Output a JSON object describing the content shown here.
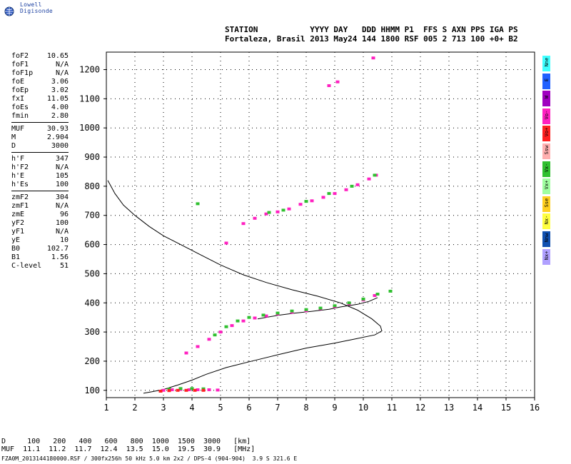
{
  "app": {
    "logo_text": "Lowell Digisonde"
  },
  "header": {
    "line1": "STATION           YYYY DAY   DDD HHMM P1  FFS S AXN PPS IGA PS",
    "line2": "Fortaleza, Brasil 2013 May24 144 1800 RSF 005 2 713 100 +0+ B2"
  },
  "params": {
    "group1": [
      {
        "k": "foF2",
        "v": "10.65"
      },
      {
        "k": "foF1",
        "v": "N/A"
      },
      {
        "k": "foF1p",
        "v": "N/A"
      },
      {
        "k": "foE",
        "v": "3.06"
      },
      {
        "k": "foEp",
        "v": "3.02"
      },
      {
        "k": "fxI",
        "v": "11.05"
      },
      {
        "k": "foEs",
        "v": "4.00"
      },
      {
        "k": "fmin",
        "v": "2.80"
      }
    ],
    "group2": [
      {
        "k": "MUF",
        "v": "30.93"
      },
      {
        "k": "M",
        "v": "2.904"
      },
      {
        "k": "D",
        "v": "3000"
      }
    ],
    "group3": [
      {
        "k": "h'F",
        "v": "347"
      },
      {
        "k": "h'F2",
        "v": "N/A"
      },
      {
        "k": "h'E",
        "v": "105"
      },
      {
        "k": "h'Es",
        "v": "100"
      }
    ],
    "group4": [
      {
        "k": "zmF2",
        "v": "304"
      },
      {
        "k": "zmF1",
        "v": "N/A"
      },
      {
        "k": "zmE",
        "v": "96"
      },
      {
        "k": "yF2",
        "v": "100"
      },
      {
        "k": "yF1",
        "v": "N/A"
      },
      {
        "k": "yE",
        "v": "10"
      },
      {
        "k": "B0",
        "v": "102.7"
      },
      {
        "k": "B1",
        "v": "1.56"
      },
      {
        "k": "C-level",
        "v": "51"
      }
    ]
  },
  "legend": [
    {
      "label": "Nne",
      "color": "#40ffff"
    },
    {
      "label": "E",
      "color": "#2060ff"
    },
    {
      "label": "W",
      "color": "#a000c0"
    },
    {
      "label": "Vo-",
      "color": "#ff20c0"
    },
    {
      "label": "Vo+",
      "color": "#ff2020"
    },
    {
      "label": "Ssw",
      "color": "#ffb0b0"
    },
    {
      "label": "Vx-",
      "color": "#30c030"
    },
    {
      "label": "Vx+",
      "color": "#a0ffa0"
    },
    {
      "label": "Sse",
      "color": "#ffd020"
    },
    {
      "label": "Nx-",
      "color": "#ffff40"
    },
    {
      "label": "Nnw",
      "color": "#1050b0"
    },
    {
      "label": "Nx+",
      "color": "#b0a0ff"
    }
  ],
  "bottom": {
    "d_row": "D     100   200   400   600   800  1000  1500  3000   [km]",
    "muf_row": "MUF  11.1  11.2  11.7  12.4  13.5  15.0  19.5  30.9   [MHz]",
    "footer": "FZA0M_2013144180000.RSF / 300fx256h 50 kHz 5.0 km 2x2 / DPS-4 (904-904)  3.9 S 321.6 E"
  },
  "chart_data": {
    "type": "scatter",
    "x_ticks": [
      "1",
      "2",
      "3",
      "4",
      "5",
      "6",
      "7",
      "8",
      "9",
      "10",
      "11",
      "12",
      "13",
      "14",
      "15",
      "16"
    ],
    "y_ticks": [
      "100",
      "200",
      "300",
      "400",
      "500",
      "600",
      "700",
      "800",
      "900",
      "1000",
      "1100",
      "1200"
    ],
    "xlim": [
      1,
      16
    ],
    "ylim": [
      75,
      1260
    ],
    "grid": true,
    "series": [
      {
        "color": "#ff20c0",
        "points": [
          [
            3.0,
            100
          ],
          [
            3.3,
            102
          ],
          [
            3.6,
            103
          ],
          [
            3.9,
            102
          ],
          [
            4.2,
            102
          ],
          [
            4.6,
            102
          ],
          [
            4.9,
            101
          ],
          [
            3.8,
            228
          ],
          [
            4.2,
            250
          ],
          [
            4.6,
            275
          ],
          [
            5.0,
            300
          ],
          [
            5.4,
            322
          ],
          [
            5.8,
            338
          ],
          [
            6.2,
            348
          ],
          [
            6.6,
            355
          ],
          [
            7.0,
            362
          ],
          [
            7.5,
            368
          ],
          [
            8.0,
            373
          ],
          [
            8.5,
            380
          ],
          [
            9.0,
            387
          ],
          [
            9.5,
            397
          ],
          [
            10.0,
            410
          ],
          [
            10.4,
            425
          ],
          [
            5.8,
            672
          ],
          [
            6.2,
            690
          ],
          [
            6.6,
            705
          ],
          [
            7.0,
            712
          ],
          [
            7.4,
            722
          ],
          [
            7.8,
            738
          ],
          [
            8.2,
            750
          ],
          [
            8.6,
            762
          ],
          [
            9.0,
            775
          ],
          [
            9.4,
            788
          ],
          [
            9.8,
            805
          ],
          [
            10.2,
            825
          ],
          [
            10.45,
            838
          ],
          [
            8.8,
            1145
          ],
          [
            9.1,
            1158
          ],
          [
            10.35,
            1240
          ],
          [
            5.2,
            605
          ]
        ]
      },
      {
        "color": "#30c030",
        "points": [
          [
            3.2,
            104
          ],
          [
            3.6,
            106
          ],
          [
            4.0,
            106
          ],
          [
            4.4,
            105
          ],
          [
            4.8,
            290
          ],
          [
            5.2,
            318
          ],
          [
            5.6,
            338
          ],
          [
            6.0,
            350
          ],
          [
            6.5,
            358
          ],
          [
            7.0,
            365
          ],
          [
            7.5,
            372
          ],
          [
            8.0,
            377
          ],
          [
            8.5,
            382
          ],
          [
            9.0,
            390
          ],
          [
            9.5,
            400
          ],
          [
            10.0,
            413
          ],
          [
            10.5,
            430
          ],
          [
            10.95,
            440
          ],
          [
            6.7,
            710
          ],
          [
            7.2,
            718
          ],
          [
            8.0,
            748
          ],
          [
            8.8,
            775
          ],
          [
            9.6,
            800
          ],
          [
            10.4,
            838
          ],
          [
            4.2,
            740
          ]
        ]
      },
      {
        "color": "#ff2020",
        "points": [
          [
            2.9,
            97
          ],
          [
            3.2,
            99
          ],
          [
            3.5,
            100
          ],
          [
            3.8,
            100
          ],
          [
            4.1,
            100
          ],
          [
            4.4,
            100
          ]
        ]
      }
    ],
    "profile": {
      "points": [
        [
          1.05,
          820
        ],
        [
          1.3,
          775
        ],
        [
          1.6,
          735
        ],
        [
          2.0,
          700
        ],
        [
          2.5,
          662
        ],
        [
          3.0,
          630
        ],
        [
          3.6,
          600
        ],
        [
          4.3,
          565
        ],
        [
          5.0,
          530
        ],
        [
          5.8,
          496
        ],
        [
          6.6,
          470
        ],
        [
          7.5,
          445
        ],
        [
          8.4,
          423
        ],
        [
          9.2,
          400
        ],
        [
          9.8,
          375
        ],
        [
          10.3,
          345
        ],
        [
          10.6,
          320
        ],
        [
          10.65,
          304
        ],
        [
          10.4,
          290
        ],
        [
          9.8,
          278
        ],
        [
          9.0,
          262
        ],
        [
          8.0,
          245
        ],
        [
          7.0,
          222
        ],
        [
          6.0,
          198
        ],
        [
          5.2,
          178
        ],
        [
          4.5,
          155
        ],
        [
          4.0,
          135
        ],
        [
          3.5,
          118
        ],
        [
          3.0,
          103
        ],
        [
          2.6,
          95
        ],
        [
          2.3,
          90
        ]
      ],
      "color": "#000000"
    },
    "trace2": {
      "points": [
        [
          6.3,
          345
        ],
        [
          7.0,
          357
        ],
        [
          7.6,
          365
        ],
        [
          8.2,
          371
        ],
        [
          8.8,
          378
        ],
        [
          9.2,
          386
        ],
        [
          9.8,
          395
        ],
        [
          10.2,
          405
        ],
        [
          10.5,
          418
        ]
      ],
      "color": "#000000"
    }
  }
}
